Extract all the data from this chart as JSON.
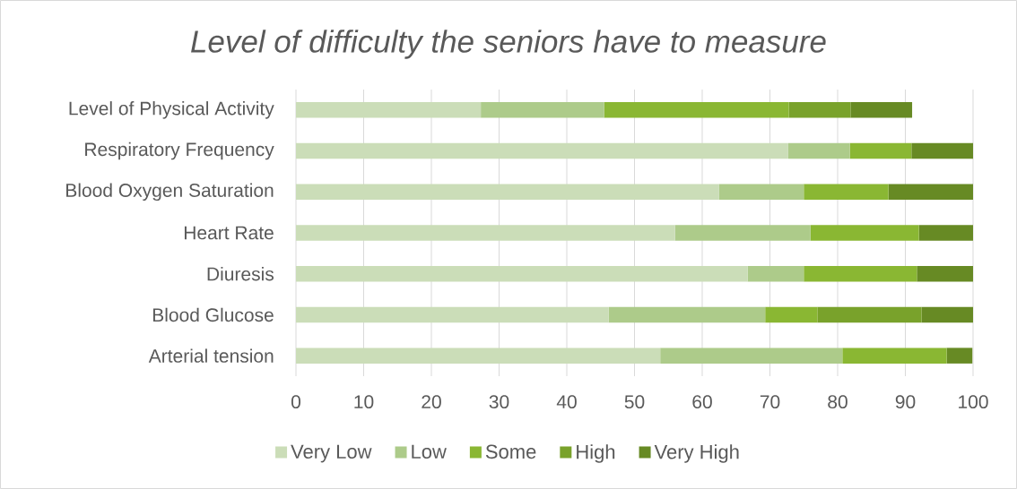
{
  "chart_data": {
    "type": "bar",
    "orientation": "horizontal",
    "stacked": true,
    "title": "Level of difficulty the seniors have to measure",
    "categories": [
      "Level of Physical Activity",
      "Respiratory Frequency",
      "Blood Oxygen Saturation",
      "Heart Rate",
      "Diuresis",
      "Blood Glucose",
      "Arterial tension"
    ],
    "series": [
      {
        "name": "Very Low",
        "color": "#cbddb8",
        "values": [
          27.3,
          72.7,
          62.5,
          56,
          66.7,
          46.2,
          53.8
        ]
      },
      {
        "name": "Low",
        "color": "#adcb8a",
        "values": [
          18.2,
          9.1,
          12.5,
          20,
          8.3,
          23.1,
          26.9
        ]
      },
      {
        "name": "Some",
        "color": "#8ab733",
        "values": [
          27.3,
          9.1,
          12.5,
          16,
          16.7,
          7.7,
          15.4
        ]
      },
      {
        "name": "High",
        "color": "#79a22b",
        "values": [
          9.1,
          0,
          0,
          0,
          0,
          15.4,
          0
        ]
      },
      {
        "name": "Very High",
        "color": "#678a24",
        "values": [
          9.1,
          9.1,
          12.5,
          8,
          8.3,
          7.7,
          3.8
        ]
      }
    ],
    "xlim": [
      0,
      100
    ],
    "xticks": [
      0,
      10,
      20,
      30,
      40,
      50,
      60,
      70,
      80,
      90,
      100
    ],
    "grid": "x",
    "legend": "bottom"
  }
}
